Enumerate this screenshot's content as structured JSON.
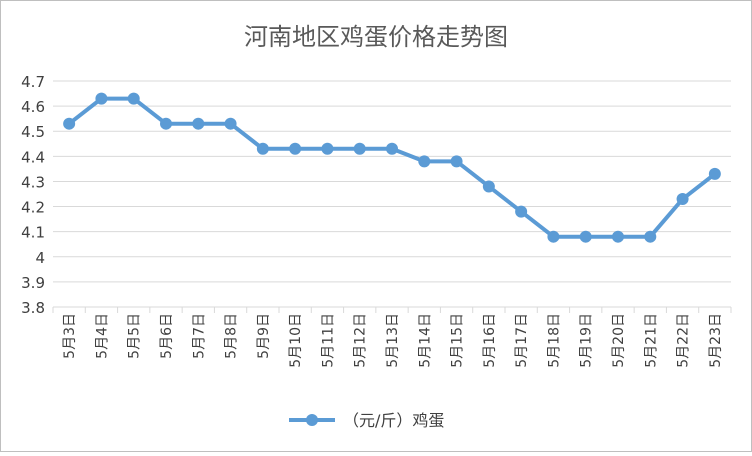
{
  "chart_data": {
    "type": "line",
    "title": "河南地区鸡蛋价格走势图",
    "xlabel": "",
    "ylabel": "",
    "categories": [
      "5月3日",
      "5月4日",
      "5月5日",
      "5月6日",
      "5月7日",
      "5月8日",
      "5月9日",
      "5月10日",
      "5月11日",
      "5月12日",
      "5月13日",
      "5月14日",
      "5月15日",
      "5月16日",
      "5月17日",
      "5月18日",
      "5月19日",
      "5月20日",
      "5月21日",
      "5月22日",
      "5月23日"
    ],
    "series": [
      {
        "name": "（元/斤）鸡蛋",
        "values": [
          4.53,
          4.63,
          4.63,
          4.53,
          4.53,
          4.53,
          4.43,
          4.43,
          4.43,
          4.43,
          4.43,
          4.38,
          4.38,
          4.28,
          4.18,
          4.08,
          4.08,
          4.08,
          4.08,
          4.23,
          4.33
        ],
        "color": "#5b9bd5"
      }
    ],
    "ylim": [
      3.8,
      4.7
    ],
    "yticks": [
      "3.8",
      "3.9",
      "4",
      "4.1",
      "4.2",
      "4.3",
      "4.4",
      "4.5",
      "4.6",
      "4.7"
    ],
    "grid": true,
    "legend": "bottom"
  },
  "colors": {
    "grid": "#d9d9d9",
    "axis_text": "#404040",
    "title": "#595959"
  }
}
